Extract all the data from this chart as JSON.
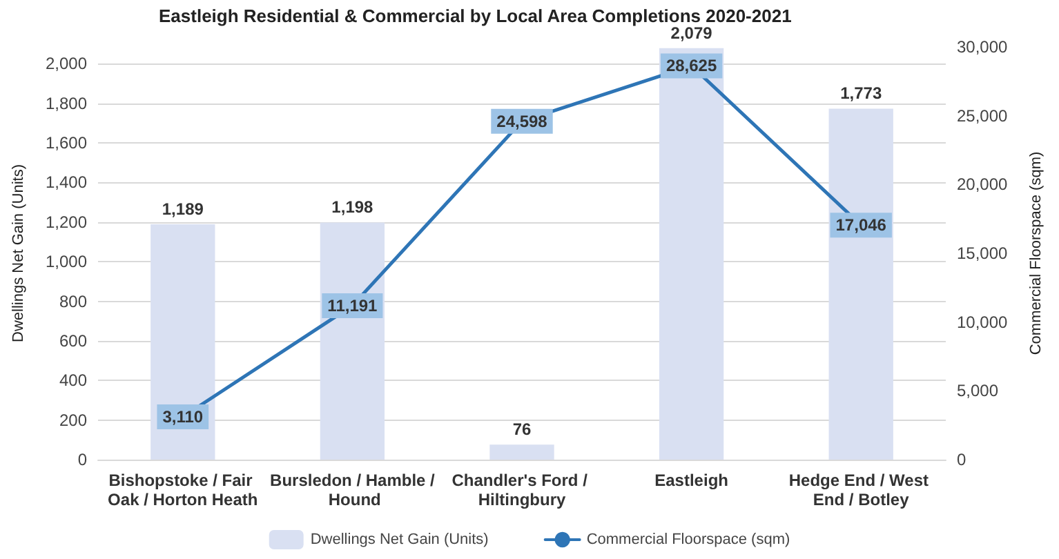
{
  "chart_data": {
    "type": "bar",
    "title": "Eastleigh Residential & Commercial by Local Area Completions 2020-2021",
    "categories": [
      "Bishopstoke / Fair Oak / Horton Heath",
      "Bursledon / Hamble / Hound",
      "Chandler's Ford / Hiltingbury",
      "Eastleigh",
      "Hedge End / West End / Botley"
    ],
    "series": [
      {
        "name": "Dwellings Net Gain (Units)",
        "color": "#d9e0f2",
        "values": [
          1189,
          1198,
          76,
          2079,
          1773
        ],
        "value_labels": [
          "1,189",
          "1,198",
          "76",
          "2,079",
          "1,773"
        ]
      },
      {
        "name": "Commercial Floorspace (sqm)",
        "type": "line",
        "axis": "y2",
        "color": "#2e75b6",
        "values": [
          3110,
          11191,
          24598,
          28625,
          17046
        ],
        "value_labels": [
          "3,110",
          "11,191",
          "24,598",
          "28,625",
          "17,046"
        ]
      }
    ],
    "ylabel": "Dwellings Net Gain (Units)",
    "y2label": "Commercial Floorspace (sqm)",
    "ylim": [
      0,
      2085
    ],
    "yticks": [
      0,
      200,
      400,
      600,
      800,
      {
        "value": 1000,
        "label": "1,000"
      },
      {
        "value": 1200,
        "label": "1,200"
      },
      {
        "value": 1400,
        "label": "1,400"
      },
      {
        "value": 1600,
        "label": "1,600"
      },
      {
        "value": 1800,
        "label": "1,800"
      },
      {
        "value": 2000,
        "label": "2,000"
      }
    ],
    "y2lim": [
      0,
      30000
    ],
    "y2ticks": [
      0,
      {
        "value": 5000,
        "label": "5,000"
      },
      {
        "value": 10000,
        "label": "10,000"
      },
      {
        "value": 15000,
        "label": "15,000"
      },
      {
        "value": 20000,
        "label": "20,000"
      },
      {
        "value": 25000,
        "label": "25,000"
      },
      {
        "value": 30000,
        "label": "30,000"
      }
    ],
    "grid": "y",
    "legend": "bottom",
    "line_style": "solid"
  }
}
